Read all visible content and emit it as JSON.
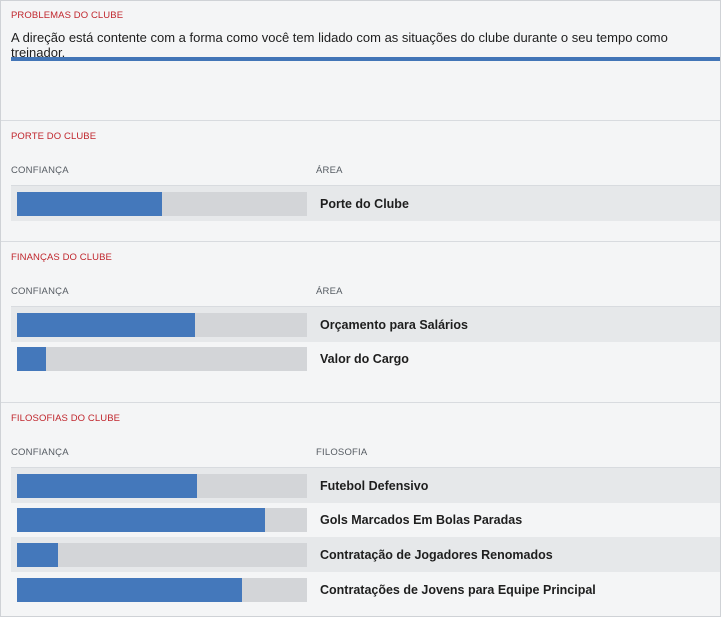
{
  "problems": {
    "title": "PROBLEMAS DO CLUBE",
    "text": "A direção está contente com a forma como você tem lidado com as situações do clube durante o seu tempo como treinador."
  },
  "size": {
    "title": "PORTE DO CLUBE",
    "col_confidence": "CONFIANÇA",
    "col_area": "ÁREA",
    "rows": [
      {
        "label": "Porte do Clube",
        "confidence": 0.5
      }
    ]
  },
  "finances": {
    "title": "FINANÇAS DO CLUBE",
    "col_confidence": "CONFIANÇA",
    "col_area": "ÁREA",
    "rows": [
      {
        "label": "Orçamento para Salários",
        "confidence": 0.615
      },
      {
        "label": "Valor do Cargo",
        "confidence": 0.1
      }
    ]
  },
  "philosophies": {
    "title": "FILOSOFIAS DO CLUBE",
    "col_confidence": "CONFIANÇA",
    "col_philosophy": "FILOSOFIA",
    "rows": [
      {
        "label": "Futebol Defensivo",
        "confidence": 0.62
      },
      {
        "label": "Gols Marcados Em Bolas Paradas",
        "confidence": 0.855
      },
      {
        "label": "Contratação de Jogadores Renomados",
        "confidence": 0.14
      },
      {
        "label": "Contratações de Jovens para Equipe Principal",
        "confidence": 0.775
      }
    ]
  },
  "colors": {
    "accent": "#4478bb",
    "title_red": "#c0262d",
    "track": "#d3d5d8"
  }
}
